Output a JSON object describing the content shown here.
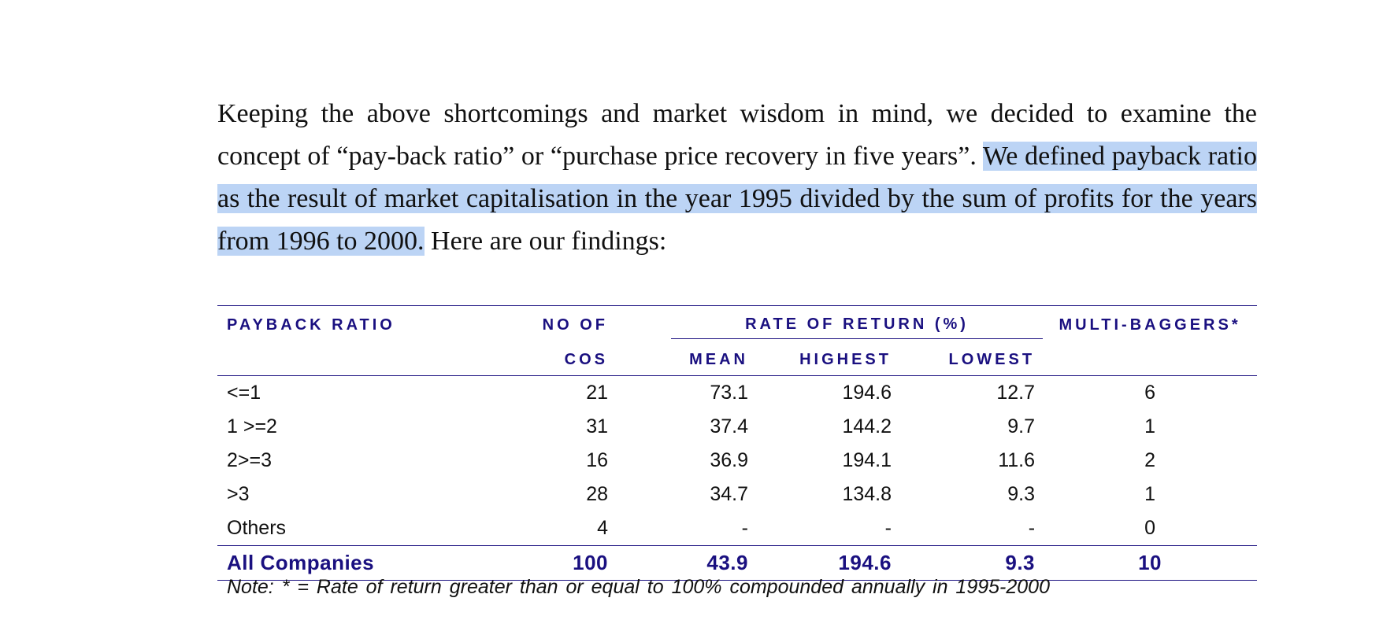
{
  "paragraph": {
    "before": "Keeping the above shortcomings and market wisdom in mind, we decided to examine the concept of “pay-back ratio” or “purchase price recovery in five years”. ",
    "highlighted": "We defined payback ratio as the result of market capitalisation in the year 1995 divided by the sum of profits for the years from 1996 to 2000.",
    "after": " Here are our findings:"
  },
  "table": {
    "headers": {
      "payback_ratio": "PAYBACK RATIO",
      "no_of": "NO OF",
      "cos": "COS",
      "rate_of_return": "RATE OF RETURN (%)",
      "mean": "MEAN",
      "highest": "HIGHEST",
      "lowest": "LOWEST",
      "multi_baggers": "MULTI-BAGGERS*"
    },
    "rows": [
      [
        "<=1",
        "21",
        "73.1",
        "194.6",
        "12.7",
        "6"
      ],
      [
        "1 >=2",
        "31",
        "37.4",
        "144.2",
        "9.7",
        "1"
      ],
      [
        "2>=3",
        "16",
        "36.9",
        "194.1",
        "11.6",
        "2"
      ],
      [
        ">3",
        "28",
        "34.7",
        "134.8",
        "9.3",
        "1"
      ],
      [
        "Others",
        "4",
        "-",
        "-",
        "-",
        "0"
      ]
    ],
    "total": [
      "All Companies",
      "100",
      "43.9",
      "194.6",
      "9.3",
      "10"
    ]
  },
  "note": "Note: * = Rate of return greater than or equal to 100% compounded annually in 1995-2000"
}
